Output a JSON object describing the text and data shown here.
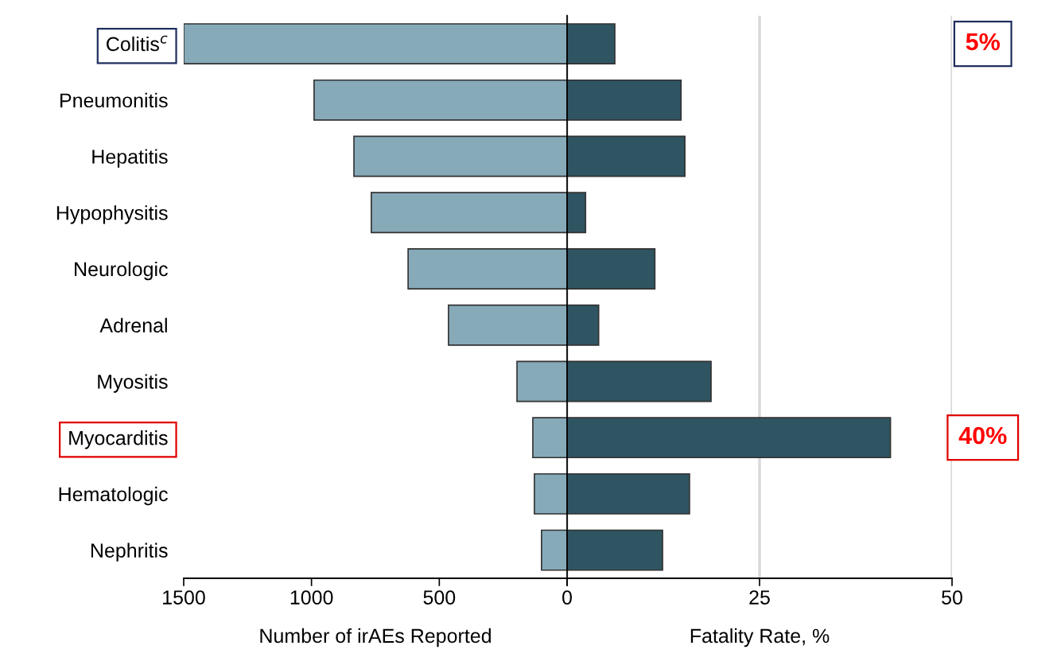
{
  "chart_data": [
    {
      "type": "bar",
      "orientation": "horizontal",
      "categories": [
        "Colitis$^{c}$",
        "Pneumonitis",
        "Hepatitis",
        "Hypophysitis",
        "Neurologic",
        "Adrenal",
        "Myositis",
        "Myocarditis",
        "Hematologic",
        "Nephritis"
      ],
      "values": [
        1500,
        990,
        834,
        766,
        622,
        464,
        196,
        134,
        128,
        100
      ],
      "color": "#87aab9",
      "xlim": [
        1500,
        0
      ],
      "xticks": [
        1500,
        1000,
        500,
        0
      ],
      "xlabel": "Number of irAEs Reported",
      "grid": false
    },
    {
      "type": "bar",
      "orientation": "horizontal",
      "categories": [
        null,
        null,
        null,
        null,
        null,
        null,
        null,
        null,
        null,
        null
      ],
      "values": [
        6.2,
        14.8,
        15.3,
        2.4,
        11.4,
        4.1,
        18.7,
        42.0,
        15.9,
        12.4
      ],
      "color": "#2f5562",
      "xlim": [
        0,
        50
      ],
      "xticks": [
        {
          "value": 0,
          "label": null
        },
        25,
        50
      ],
      "xlabel": "Fatality Rate, %",
      "grid": "x",
      "tick_labels": "x",
      "annotations": [
        "5%",
        "40%"
      ]
    }
  ]
}
